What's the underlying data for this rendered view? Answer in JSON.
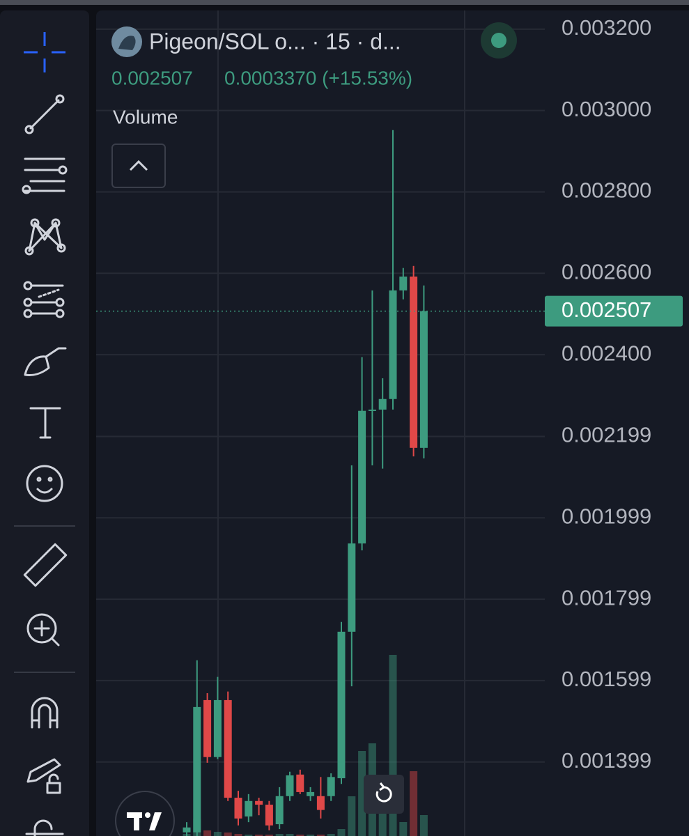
{
  "header": {
    "title": "Pigeon/SOL o... · 15 · d...",
    "last_price": "0.002507",
    "change": "0.0003370 (+15.53%)",
    "indicator": "Volume"
  },
  "chart_data": {
    "type": "candlestick",
    "open": [
      0.001226,
      0.001226,
      0.001551,
      0.001411,
      0.001551,
      0.001311,
      0.001265,
      0.001303,
      0.001294,
      0.001246,
      0.001315,
      0.001368,
      0.001315,
      0.001315,
      0.001315,
      0.001359,
      0.001719,
      0.001936,
      0.002262,
      0.002265,
      0.002291,
      0.002558,
      0.002592,
      0.002171
    ],
    "high": [
      0.001251,
      0.001649,
      0.001568,
      0.001608,
      0.001572,
      0.001328,
      0.00132,
      0.001311,
      0.001303,
      0.001337,
      0.001375,
      0.00138,
      0.001337,
      0.001362,
      0.001371,
      0.001743,
      0.002128,
      0.002394,
      0.002558,
      0.002342,
      0.002952,
      0.002613,
      0.002618,
      0.00257
    ],
    "low": [
      0.001217,
      0.001217,
      0.001397,
      0.001406,
      0.001303,
      0.001243,
      0.001251,
      0.001268,
      0.001231,
      0.001234,
      0.001303,
      0.00132,
      0.001303,
      0.00126,
      0.001303,
      0.001345,
      0.001585,
      0.001919,
      0.002128,
      0.00212,
      0.002265,
      0.002536,
      0.00215,
      0.002145
    ],
    "close": [
      0.001238,
      0.001534,
      0.001411,
      0.001551,
      0.001311,
      0.00126,
      0.001303,
      0.001294,
      0.001243,
      0.001315,
      0.001366,
      0.001325,
      0.001325,
      0.001281,
      0.001362,
      0.001719,
      0.001936,
      0.002262,
      0.002265,
      0.002291,
      0.002558,
      0.002592,
      0.002171,
      0.002507
    ],
    "volume": [
      3,
      25,
      8,
      6,
      5,
      3,
      2,
      2,
      2,
      3,
      3,
      2,
      2,
      2,
      3,
      10,
      57,
      122,
      133,
      40,
      260,
      20,
      93,
      30
    ],
    "vlim": [
      0,
      300
    ],
    "ylim": [
      0.001217,
      0.003246
    ],
    "yticks": [
      {
        "value": 0.0032,
        "label": "0.003200"
      },
      {
        "value": 0.003,
        "label": "0.003000"
      },
      {
        "value": 0.0028,
        "label": "0.002800"
      },
      {
        "value": 0.0026,
        "label": "0.002600"
      },
      {
        "value": 0.0024,
        "label": "0.002400"
      },
      {
        "value": 0.002199,
        "label": "0.002199"
      },
      {
        "value": 0.001999,
        "label": "0.001999"
      },
      {
        "value": 0.001799,
        "label": "0.001799"
      },
      {
        "value": 0.001599,
        "label": "0.001599"
      },
      {
        "value": 0.001399,
        "label": "0.001399"
      }
    ],
    "last_price": {
      "value": 0.002507,
      "label": "0.002507"
    },
    "up_color": "#3d9b7f",
    "down_color": "#e04848",
    "grid": true
  }
}
